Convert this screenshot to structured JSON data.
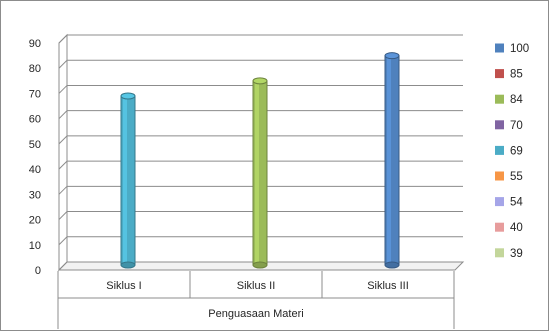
{
  "chart_data": {
    "type": "bar",
    "title": "",
    "xlabel": "Penguasaan Materi",
    "ylabel": "",
    "ylim": [
      0,
      90
    ],
    "yticks": [
      0,
      10,
      20,
      30,
      40,
      50,
      60,
      70,
      80,
      90
    ],
    "categories": [
      "Siklus I",
      "Siklus II",
      "Siklus III"
    ],
    "bars": [
      {
        "category": "Siklus I",
        "value": 67,
        "color": "#4BACC6"
      },
      {
        "category": "Siklus II",
        "value": 73,
        "color": "#9BBB59"
      },
      {
        "category": "Siklus III",
        "value": 83,
        "color": "#4F81BD"
      }
    ],
    "grid": true,
    "legend_position": "right",
    "legend": [
      {
        "label": "100",
        "color": "#4F81BD"
      },
      {
        "label": "85",
        "color": "#C0504D"
      },
      {
        "label": "84",
        "color": "#9BBB59"
      },
      {
        "label": "70",
        "color": "#8064A2"
      },
      {
        "label": "69",
        "color": "#4BACC6"
      },
      {
        "label": "55",
        "color": "#F79646"
      },
      {
        "label": "54",
        "color": "#A5A5E8"
      },
      {
        "label": "40",
        "color": "#E79C9C"
      },
      {
        "label": "39",
        "color": "#C3D69B"
      }
    ]
  }
}
